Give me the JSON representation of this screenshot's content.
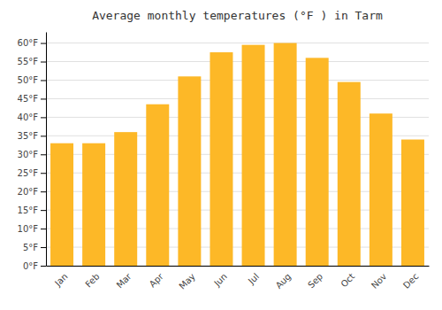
{
  "chart_data": {
    "type": "bar",
    "title": "Average monthly temperatures (°F ) in Tarm",
    "categories": [
      "Jan",
      "Feb",
      "Mar",
      "Apr",
      "May",
      "Jun",
      "Jul",
      "Aug",
      "Sep",
      "Oct",
      "Nov",
      "Dec"
    ],
    "values": [
      33,
      33,
      36,
      43.5,
      51,
      57.5,
      59.5,
      60,
      56,
      49.5,
      41,
      34
    ],
    "color": "#FDB827",
    "ylim": [
      0,
      63
    ],
    "yticks": [
      {
        "value": 0,
        "label": "0°F"
      },
      {
        "value": 5,
        "label": "5°F"
      },
      {
        "value": 10,
        "label": "10°F"
      },
      {
        "value": 15,
        "label": "15°F"
      },
      {
        "value": 20,
        "label": "20°F"
      },
      {
        "value": 25,
        "label": "25°F"
      },
      {
        "value": 30,
        "label": "30°F"
      },
      {
        "value": 35,
        "label": "35°F"
      },
      {
        "value": 40,
        "label": "40°F"
      },
      {
        "value": 45,
        "label": "45°F"
      },
      {
        "value": 50,
        "label": "50°F"
      },
      {
        "value": 55,
        "label": "55°F"
      },
      {
        "value": 60,
        "label": "60°F"
      }
    ],
    "grid": true
  }
}
